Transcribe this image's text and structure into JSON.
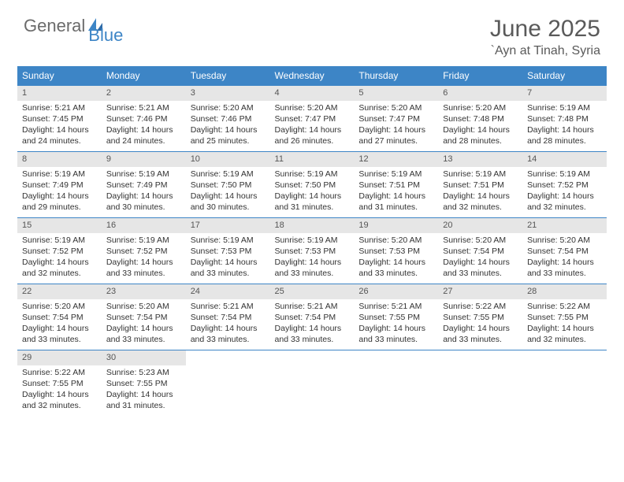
{
  "logo": {
    "part1": "General",
    "part2": "Blue"
  },
  "title": "June 2025",
  "location": "`Ayn at Tinah, Syria",
  "colors": {
    "header_bg": "#3d85c6",
    "header_text": "#ffffff",
    "daynum_bg": "#e6e6e6",
    "border": "#3d85c6",
    "body_text": "#333333",
    "title_text": "#5a5a5a"
  },
  "weekdays": [
    "Sunday",
    "Monday",
    "Tuesday",
    "Wednesday",
    "Thursday",
    "Friday",
    "Saturday"
  ],
  "days": [
    {
      "n": "1",
      "sunrise": "Sunrise: 5:21 AM",
      "sunset": "Sunset: 7:45 PM",
      "day1": "Daylight: 14 hours",
      "day2": "and 24 minutes."
    },
    {
      "n": "2",
      "sunrise": "Sunrise: 5:21 AM",
      "sunset": "Sunset: 7:46 PM",
      "day1": "Daylight: 14 hours",
      "day2": "and 24 minutes."
    },
    {
      "n": "3",
      "sunrise": "Sunrise: 5:20 AM",
      "sunset": "Sunset: 7:46 PM",
      "day1": "Daylight: 14 hours",
      "day2": "and 25 minutes."
    },
    {
      "n": "4",
      "sunrise": "Sunrise: 5:20 AM",
      "sunset": "Sunset: 7:47 PM",
      "day1": "Daylight: 14 hours",
      "day2": "and 26 minutes."
    },
    {
      "n": "5",
      "sunrise": "Sunrise: 5:20 AM",
      "sunset": "Sunset: 7:47 PM",
      "day1": "Daylight: 14 hours",
      "day2": "and 27 minutes."
    },
    {
      "n": "6",
      "sunrise": "Sunrise: 5:20 AM",
      "sunset": "Sunset: 7:48 PM",
      "day1": "Daylight: 14 hours",
      "day2": "and 28 minutes."
    },
    {
      "n": "7",
      "sunrise": "Sunrise: 5:19 AM",
      "sunset": "Sunset: 7:48 PM",
      "day1": "Daylight: 14 hours",
      "day2": "and 28 minutes."
    },
    {
      "n": "8",
      "sunrise": "Sunrise: 5:19 AM",
      "sunset": "Sunset: 7:49 PM",
      "day1": "Daylight: 14 hours",
      "day2": "and 29 minutes."
    },
    {
      "n": "9",
      "sunrise": "Sunrise: 5:19 AM",
      "sunset": "Sunset: 7:49 PM",
      "day1": "Daylight: 14 hours",
      "day2": "and 30 minutes."
    },
    {
      "n": "10",
      "sunrise": "Sunrise: 5:19 AM",
      "sunset": "Sunset: 7:50 PM",
      "day1": "Daylight: 14 hours",
      "day2": "and 30 minutes."
    },
    {
      "n": "11",
      "sunrise": "Sunrise: 5:19 AM",
      "sunset": "Sunset: 7:50 PM",
      "day1": "Daylight: 14 hours",
      "day2": "and 31 minutes."
    },
    {
      "n": "12",
      "sunrise": "Sunrise: 5:19 AM",
      "sunset": "Sunset: 7:51 PM",
      "day1": "Daylight: 14 hours",
      "day2": "and 31 minutes."
    },
    {
      "n": "13",
      "sunrise": "Sunrise: 5:19 AM",
      "sunset": "Sunset: 7:51 PM",
      "day1": "Daylight: 14 hours",
      "day2": "and 32 minutes."
    },
    {
      "n": "14",
      "sunrise": "Sunrise: 5:19 AM",
      "sunset": "Sunset: 7:52 PM",
      "day1": "Daylight: 14 hours",
      "day2": "and 32 minutes."
    },
    {
      "n": "15",
      "sunrise": "Sunrise: 5:19 AM",
      "sunset": "Sunset: 7:52 PM",
      "day1": "Daylight: 14 hours",
      "day2": "and 32 minutes."
    },
    {
      "n": "16",
      "sunrise": "Sunrise: 5:19 AM",
      "sunset": "Sunset: 7:52 PM",
      "day1": "Daylight: 14 hours",
      "day2": "and 33 minutes."
    },
    {
      "n": "17",
      "sunrise": "Sunrise: 5:19 AM",
      "sunset": "Sunset: 7:53 PM",
      "day1": "Daylight: 14 hours",
      "day2": "and 33 minutes."
    },
    {
      "n": "18",
      "sunrise": "Sunrise: 5:19 AM",
      "sunset": "Sunset: 7:53 PM",
      "day1": "Daylight: 14 hours",
      "day2": "and 33 minutes."
    },
    {
      "n": "19",
      "sunrise": "Sunrise: 5:20 AM",
      "sunset": "Sunset: 7:53 PM",
      "day1": "Daylight: 14 hours",
      "day2": "and 33 minutes."
    },
    {
      "n": "20",
      "sunrise": "Sunrise: 5:20 AM",
      "sunset": "Sunset: 7:54 PM",
      "day1": "Daylight: 14 hours",
      "day2": "and 33 minutes."
    },
    {
      "n": "21",
      "sunrise": "Sunrise: 5:20 AM",
      "sunset": "Sunset: 7:54 PM",
      "day1": "Daylight: 14 hours",
      "day2": "and 33 minutes."
    },
    {
      "n": "22",
      "sunrise": "Sunrise: 5:20 AM",
      "sunset": "Sunset: 7:54 PM",
      "day1": "Daylight: 14 hours",
      "day2": "and 33 minutes."
    },
    {
      "n": "23",
      "sunrise": "Sunrise: 5:20 AM",
      "sunset": "Sunset: 7:54 PM",
      "day1": "Daylight: 14 hours",
      "day2": "and 33 minutes."
    },
    {
      "n": "24",
      "sunrise": "Sunrise: 5:21 AM",
      "sunset": "Sunset: 7:54 PM",
      "day1": "Daylight: 14 hours",
      "day2": "and 33 minutes."
    },
    {
      "n": "25",
      "sunrise": "Sunrise: 5:21 AM",
      "sunset": "Sunset: 7:54 PM",
      "day1": "Daylight: 14 hours",
      "day2": "and 33 minutes."
    },
    {
      "n": "26",
      "sunrise": "Sunrise: 5:21 AM",
      "sunset": "Sunset: 7:55 PM",
      "day1": "Daylight: 14 hours",
      "day2": "and 33 minutes."
    },
    {
      "n": "27",
      "sunrise": "Sunrise: 5:22 AM",
      "sunset": "Sunset: 7:55 PM",
      "day1": "Daylight: 14 hours",
      "day2": "and 33 minutes."
    },
    {
      "n": "28",
      "sunrise": "Sunrise: 5:22 AM",
      "sunset": "Sunset: 7:55 PM",
      "day1": "Daylight: 14 hours",
      "day2": "and 32 minutes."
    },
    {
      "n": "29",
      "sunrise": "Sunrise: 5:22 AM",
      "sunset": "Sunset: 7:55 PM",
      "day1": "Daylight: 14 hours",
      "day2": "and 32 minutes."
    },
    {
      "n": "30",
      "sunrise": "Sunrise: 5:23 AM",
      "sunset": "Sunset: 7:55 PM",
      "day1": "Daylight: 14 hours",
      "day2": "and 31 minutes."
    }
  ]
}
